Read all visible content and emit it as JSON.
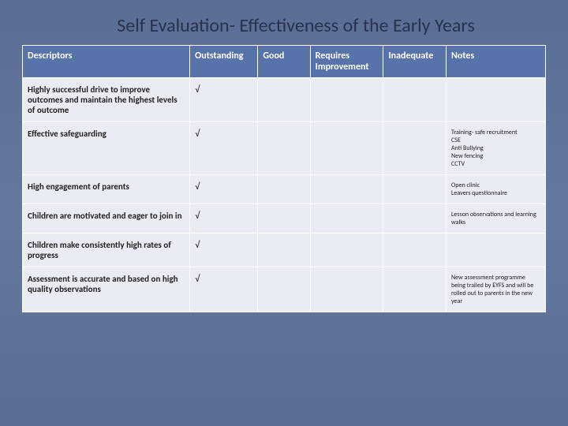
{
  "slide": {
    "title": "Self Evaluation- Effectiveness of the Early Years",
    "background_gradient": [
      "#5a6d95",
      "#6578a0",
      "#5a6d95"
    ],
    "title_color": "#26324e",
    "title_fontsize": 24
  },
  "table": {
    "header_bg": "#5873a9",
    "header_color": "#ffffff",
    "cell_bg": "#e9ecf3",
    "border_color": "#ffffff",
    "col_widths_pct": [
      32,
      13,
      10,
      14,
      12,
      19
    ],
    "columns": [
      "Descriptors",
      "Outstanding",
      "Good",
      "Requires Improvement",
      "Inadequate",
      "Notes"
    ],
    "check_mark": "√",
    "rows": [
      {
        "descriptor": "Highly successful drive to improve outcomes and maintain the highest levels of outcome",
        "outstanding": "√",
        "good": "",
        "requires": "",
        "inadequate": "",
        "notes": ""
      },
      {
        "descriptor": "Effective safeguarding",
        "outstanding": "√",
        "good": "",
        "requires": "",
        "inadequate": "",
        "notes": "Training- safe recruitment\nCSE\nAnti Bullying\nNew fencing\nCCTV"
      },
      {
        "descriptor": "High engagement of parents",
        "outstanding": "√",
        "good": "",
        "requires": "",
        "inadequate": "",
        "notes": "Open clinic\nLeavers questionnaire"
      },
      {
        "descriptor": "Children are motivated and eager to join in",
        "outstanding": "√",
        "good": "",
        "requires": "",
        "inadequate": "",
        "notes": "Lesson observations and learning walks"
      },
      {
        "descriptor": "Children make consistently high rates of progress",
        "outstanding": "√",
        "good": "",
        "requires": "",
        "inadequate": "",
        "notes": ""
      },
      {
        "descriptor": "Assessment is accurate and based on high quality observations",
        "outstanding": "√",
        "good": "",
        "requires": "",
        "inadequate": "",
        "notes": "New assessment programme being trailed by EYFS and will be rolled out to parents in the new year"
      }
    ]
  }
}
